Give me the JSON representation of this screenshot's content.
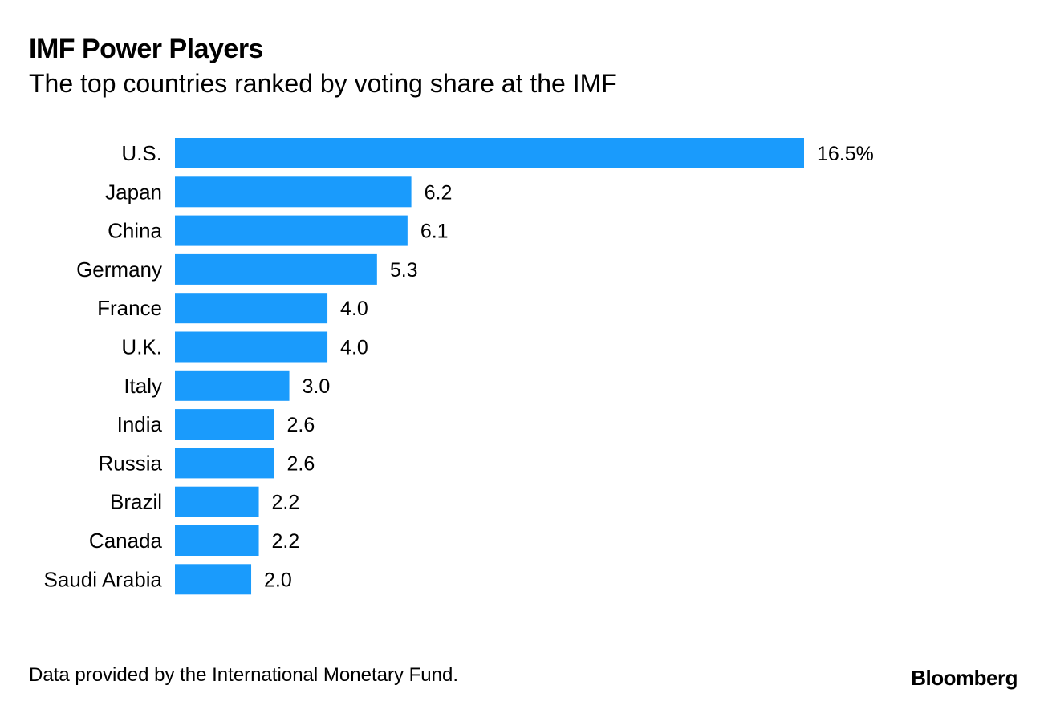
{
  "header": {
    "title": "IMF Power Players",
    "subtitle": "The top countries ranked by voting share at the IMF"
  },
  "footer": {
    "source": "Data provided by the International Monetary Fund.",
    "brand": "Bloomberg"
  },
  "chart_data": {
    "type": "bar",
    "orientation": "horizontal",
    "categories": [
      "U.S.",
      "Japan",
      "China",
      "Germany",
      "France",
      "U.K.",
      "Italy",
      "India",
      "Russia",
      "Brazil",
      "Canada",
      "Saudi Arabia"
    ],
    "values": [
      16.5,
      6.2,
      6.1,
      5.3,
      4.0,
      4.0,
      3.0,
      2.6,
      2.6,
      2.2,
      2.2,
      2.0
    ],
    "value_labels": [
      "16.5%",
      "6.2",
      "6.1",
      "5.3",
      "4.0",
      "4.0",
      "3.0",
      "2.6",
      "2.6",
      "2.2",
      "2.2",
      "2.0"
    ],
    "title": "IMF Power Players",
    "subtitle": "The top countries ranked by voting share at the IMF",
    "xlabel": "",
    "ylabel": "",
    "xlim": [
      0,
      16.5
    ],
    "grid": false,
    "bar_color": "#1a9bfc"
  }
}
